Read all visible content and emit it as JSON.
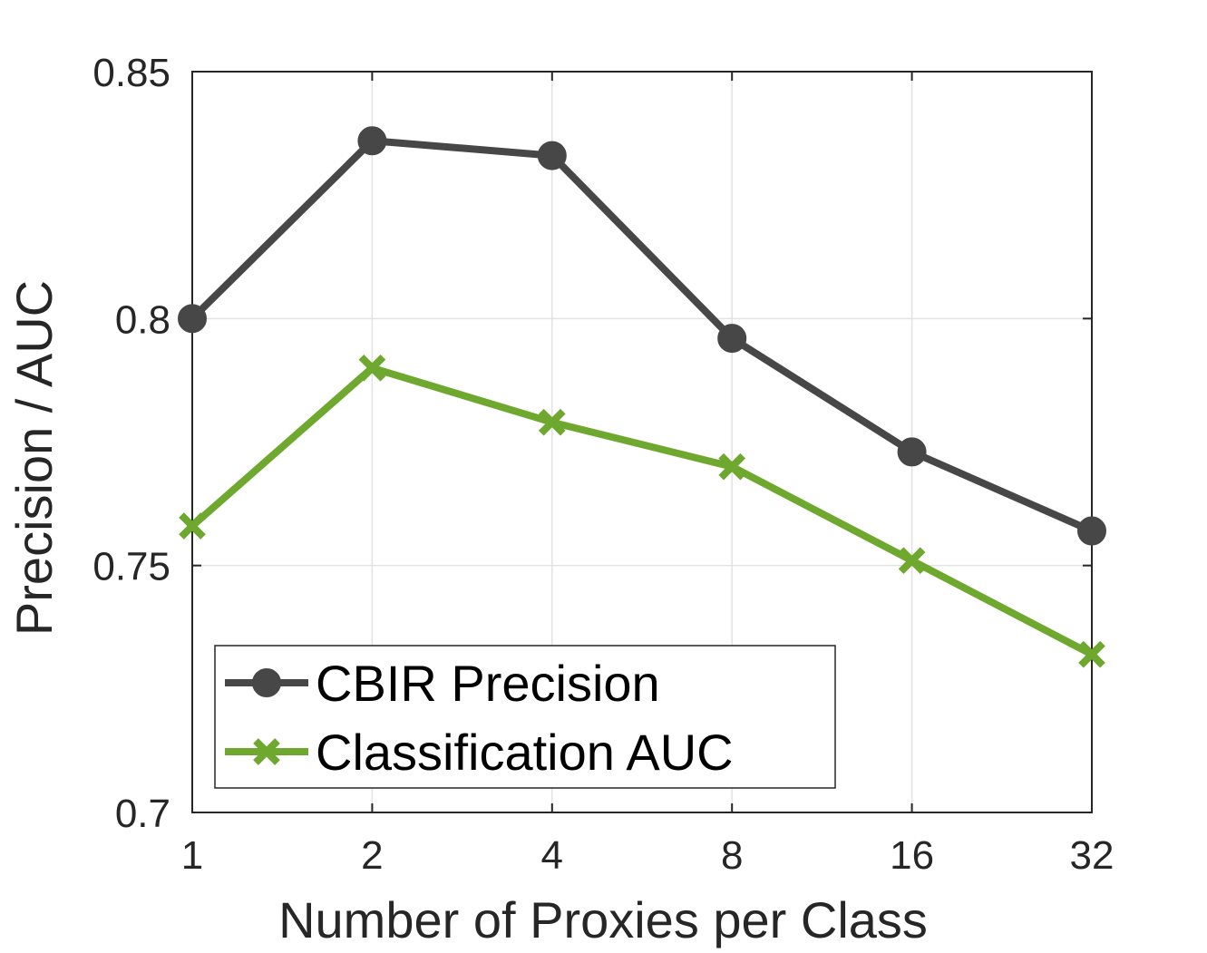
{
  "chart_data": {
    "type": "line",
    "title": "",
    "xlabel": "Number of Proxies per Class",
    "ylabel": "Precision / AUC",
    "x_scale": "log2",
    "x": [
      1,
      2,
      4,
      8,
      16,
      32
    ],
    "x_tick_labels": [
      "1",
      "2",
      "4",
      "8",
      "16",
      "32"
    ],
    "ylim": [
      0.7,
      0.85
    ],
    "y_ticks": [
      0.7,
      0.75,
      0.8,
      0.85
    ],
    "y_tick_labels": [
      "0.7",
      "0.75",
      "0.8",
      "0.85"
    ],
    "grid": true,
    "legend_position": "bottom-left",
    "series": [
      {
        "name": "CBIR Precision",
        "values": [
          0.8,
          0.836,
          0.833,
          0.796,
          0.773,
          0.757
        ],
        "color": "#474747",
        "marker": "circle"
      },
      {
        "name": "Classification AUC",
        "values": [
          0.758,
          0.79,
          0.779,
          0.77,
          0.751,
          0.732
        ],
        "color": "#6ea82e",
        "marker": "x"
      }
    ]
  }
}
